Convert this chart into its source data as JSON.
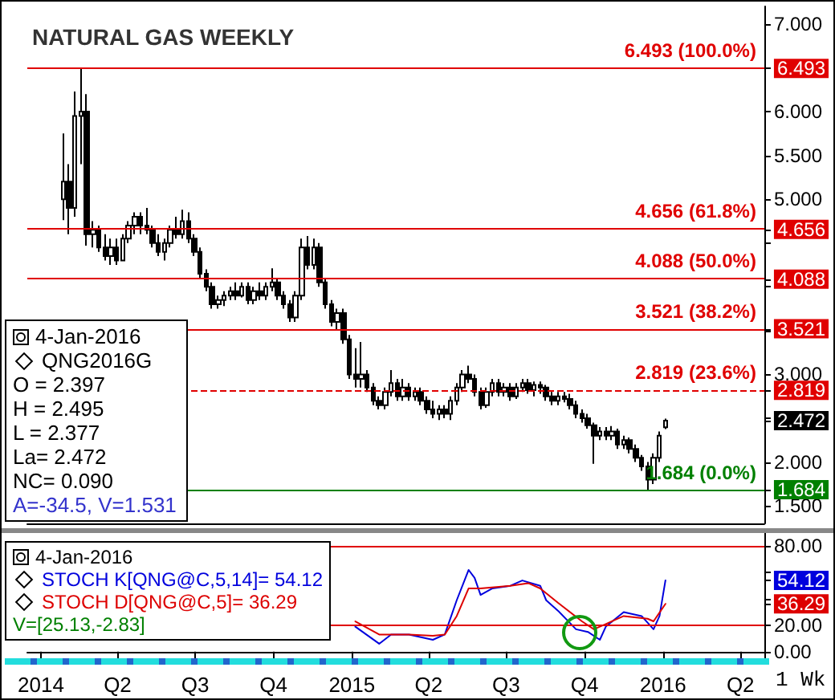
{
  "chart_data": [
    {
      "type": "candlestick",
      "title": "NATURAL GAS WEEKLY",
      "x": [
        "2014-01-27",
        "2014-02-03",
        "2014-02-10",
        "2014-02-17",
        "2014-02-24",
        "2014-03-03",
        "2014-03-10",
        "2014-03-17",
        "2014-03-24",
        "2014-03-31",
        "2014-04-07",
        "2014-04-14",
        "2014-04-21",
        "2014-04-28",
        "2014-05-05",
        "2014-05-12",
        "2014-05-19",
        "2014-05-26",
        "2014-06-02",
        "2014-06-09",
        "2014-06-16",
        "2014-06-23",
        "2014-06-30",
        "2014-07-07",
        "2014-07-14",
        "2014-07-21",
        "2014-07-28",
        "2014-08-04",
        "2014-08-11",
        "2014-08-18",
        "2014-08-25",
        "2014-09-01",
        "2014-09-08",
        "2014-09-15",
        "2014-09-22",
        "2014-09-29",
        "2014-10-06",
        "2014-10-13",
        "2014-10-20",
        "2014-10-27",
        "2014-11-03",
        "2014-11-10",
        "2014-11-17",
        "2014-11-24",
        "2014-12-01",
        "2014-12-08",
        "2014-12-15",
        "2014-12-22",
        "2014-12-29",
        "2015-01-05",
        "2015-01-12",
        "2015-01-19",
        "2015-01-26",
        "2015-02-02",
        "2015-02-09",
        "2015-02-16",
        "2015-02-23",
        "2015-03-02",
        "2015-03-09",
        "2015-03-16",
        "2015-03-23",
        "2015-03-30",
        "2015-04-06",
        "2015-04-13",
        "2015-04-20",
        "2015-04-27",
        "2015-05-04",
        "2015-05-11",
        "2015-05-18",
        "2015-05-25",
        "2015-06-01",
        "2015-06-08",
        "2015-06-15",
        "2015-06-22",
        "2015-06-29",
        "2015-07-06",
        "2015-07-13",
        "2015-07-20",
        "2015-07-27",
        "2015-08-03",
        "2015-08-10",
        "2015-08-17",
        "2015-08-24",
        "2015-08-31",
        "2015-09-07",
        "2015-09-14",
        "2015-09-21",
        "2015-09-28",
        "2015-10-05",
        "2015-10-12",
        "2015-10-19",
        "2015-10-26",
        "2015-11-02",
        "2015-11-09",
        "2015-11-16",
        "2015-11-23",
        "2015-11-30",
        "2015-12-07",
        "2015-12-14",
        "2015-12-21",
        "2015-12-28",
        "2016-01-04"
      ],
      "ohlc": [
        [
          5.0,
          5.75,
          4.76,
          5.2
        ],
        [
          5.2,
          5.4,
          4.6,
          4.9
        ],
        [
          4.9,
          6.23,
          4.8,
          5.95
        ],
        [
          5.95,
          6.493,
          5.4,
          6.0
        ],
        [
          6.0,
          6.2,
          4.47,
          4.6
        ],
        [
          4.6,
          4.75,
          4.45,
          4.65
        ],
        [
          4.65,
          4.7,
          4.4,
          4.45
        ],
        [
          4.45,
          4.6,
          4.3,
          4.35
        ],
        [
          4.35,
          4.55,
          4.25,
          4.45
        ],
        [
          4.45,
          4.55,
          4.25,
          4.3
        ],
        [
          4.3,
          4.6,
          4.3,
          4.55
        ],
        [
          4.55,
          4.75,
          4.5,
          4.7
        ],
        [
          4.7,
          4.85,
          4.6,
          4.8
        ],
        [
          4.8,
          4.85,
          4.6,
          4.7
        ],
        [
          4.7,
          4.9,
          4.6,
          4.65
        ],
        [
          4.65,
          4.7,
          4.45,
          4.5
        ],
        [
          4.5,
          4.6,
          4.35,
          4.4
        ],
        [
          4.4,
          4.55,
          4.3,
          4.5
        ],
        [
          4.5,
          4.7,
          4.45,
          4.65
        ],
        [
          4.65,
          4.8,
          4.55,
          4.6
        ],
        [
          4.6,
          4.88,
          4.55,
          4.75
        ],
        [
          4.75,
          4.85,
          4.5,
          4.55
        ],
        [
          4.55,
          4.6,
          4.35,
          4.4
        ],
        [
          4.4,
          4.45,
          4.1,
          4.15
        ],
        [
          4.15,
          4.2,
          3.95,
          4.0
        ],
        [
          4.0,
          4.05,
          3.75,
          3.8
        ],
        [
          3.8,
          3.9,
          3.75,
          3.85
        ],
        [
          3.85,
          3.95,
          3.78,
          3.9
        ],
        [
          3.9,
          4.0,
          3.85,
          3.95
        ],
        [
          3.95,
          4.05,
          3.85,
          3.9
        ],
        [
          3.9,
          4.05,
          3.88,
          4.0
        ],
        [
          4.0,
          4.05,
          3.8,
          3.85
        ],
        [
          3.85,
          4.0,
          3.8,
          3.95
        ],
        [
          3.95,
          4.05,
          3.85,
          3.9
        ],
        [
          3.9,
          4.05,
          3.85,
          4.0
        ],
        [
          4.0,
          4.21,
          3.95,
          4.05
        ],
        [
          4.05,
          4.1,
          3.85,
          3.9
        ],
        [
          3.9,
          3.95,
          3.75,
          3.8
        ],
        [
          3.8,
          3.85,
          3.6,
          3.65
        ],
        [
          3.65,
          3.95,
          3.6,
          3.9
        ],
        [
          3.9,
          4.55,
          3.85,
          4.45
        ],
        [
          4.45,
          4.58,
          4.2,
          4.25
        ],
        [
          4.25,
          4.55,
          4.2,
          4.45
        ],
        [
          4.45,
          4.5,
          4.0,
          4.05
        ],
        [
          4.05,
          4.1,
          3.75,
          3.8
        ],
        [
          3.8,
          3.85,
          3.55,
          3.6
        ],
        [
          3.6,
          3.75,
          3.5,
          3.7
        ],
        [
          3.7,
          3.75,
          3.35,
          3.4
        ],
        [
          3.4,
          3.45,
          2.95,
          3.0
        ],
        [
          3.0,
          3.3,
          2.85,
          2.95
        ],
        [
          2.95,
          3.37,
          2.85,
          3.0
        ],
        [
          3.0,
          3.05,
          2.8,
          2.85
        ],
        [
          2.85,
          2.9,
          2.65,
          2.7
        ],
        [
          2.7,
          2.75,
          2.6,
          2.65
        ],
        [
          2.65,
          2.85,
          2.6,
          2.8
        ],
        [
          2.8,
          3.05,
          2.75,
          2.9
        ],
        [
          2.9,
          2.95,
          2.7,
          2.75
        ],
        [
          2.75,
          2.95,
          2.7,
          2.85
        ],
        [
          2.85,
          2.9,
          2.7,
          2.75
        ],
        [
          2.75,
          2.85,
          2.7,
          2.8
        ],
        [
          2.8,
          2.85,
          2.65,
          2.7
        ],
        [
          2.7,
          2.75,
          2.55,
          2.6
        ],
        [
          2.6,
          2.7,
          2.5,
          2.55
        ],
        [
          2.55,
          2.65,
          2.48,
          2.6
        ],
        [
          2.6,
          2.65,
          2.5,
          2.55
        ],
        [
          2.55,
          2.75,
          2.48,
          2.7
        ],
        [
          2.7,
          2.9,
          2.65,
          2.85
        ],
        [
          2.85,
          3.05,
          2.8,
          3.0
        ],
        [
          3.0,
          3.1,
          2.9,
          2.95
        ],
        [
          2.95,
          3.0,
          2.75,
          2.8
        ],
        [
          2.8,
          2.85,
          2.6,
          2.65
        ],
        [
          2.65,
          2.85,
          2.62,
          2.8
        ],
        [
          2.8,
          2.95,
          2.75,
          2.9
        ],
        [
          2.9,
          2.95,
          2.75,
          2.8
        ],
        [
          2.8,
          2.9,
          2.75,
          2.85
        ],
        [
          2.85,
          2.9,
          2.7,
          2.75
        ],
        [
          2.75,
          2.9,
          2.72,
          2.85
        ],
        [
          2.85,
          2.95,
          2.8,
          2.9
        ],
        [
          2.9,
          2.95,
          2.78,
          2.82
        ],
        [
          2.82,
          2.92,
          2.75,
          2.88
        ],
        [
          2.88,
          2.92,
          2.78,
          2.85
        ],
        [
          2.85,
          2.88,
          2.7,
          2.75
        ],
        [
          2.75,
          2.8,
          2.65,
          2.7
        ],
        [
          2.7,
          2.8,
          2.65,
          2.75
        ],
        [
          2.75,
          2.8,
          2.68,
          2.72
        ],
        [
          2.72,
          2.78,
          2.6,
          2.65
        ],
        [
          2.65,
          2.7,
          2.5,
          2.55
        ],
        [
          2.55,
          2.6,
          2.45,
          2.5
        ],
        [
          2.5,
          2.55,
          2.38,
          2.42
        ],
        [
          2.42,
          2.45,
          1.98,
          2.3
        ],
        [
          2.3,
          2.4,
          2.25,
          2.35
        ],
        [
          2.35,
          2.4,
          2.25,
          2.3
        ],
        [
          2.3,
          2.41,
          2.25,
          2.35
        ],
        [
          2.35,
          2.38,
          2.15,
          2.2
        ],
        [
          2.2,
          2.3,
          2.15,
          2.25
        ],
        [
          2.25,
          2.28,
          2.1,
          2.15
        ],
        [
          2.15,
          2.2,
          2.0,
          2.05
        ],
        [
          2.05,
          2.08,
          1.9,
          1.95
        ],
        [
          1.95,
          2.0,
          1.684,
          1.8
        ],
        [
          1.8,
          2.1,
          1.75,
          2.05
        ],
        [
          2.05,
          2.35,
          2.0,
          2.3
        ],
        [
          2.397,
          2.495,
          2.377,
          2.472
        ]
      ],
      "color": "#000000",
      "xlim": [
        "2013-12-16",
        "2016-04-29"
      ],
      "ylim": [
        1.3,
        7.2
      ],
      "yticks": [
        {
          "value": 1.5,
          "label": "1.500"
        },
        {
          "value": 1.684,
          "label": "1.684"
        },
        {
          "value": 2,
          "label": "2.000"
        },
        {
          "value": 2.472,
          "label": "2.472"
        },
        {
          "value": 2.5,
          "label": null
        },
        {
          "value": 2.819,
          "label": "2.819"
        },
        {
          "value": 3,
          "label": "3.000"
        },
        {
          "value": 3.5,
          "label": null
        },
        {
          "value": 3.521,
          "label": "3.521"
        },
        {
          "value": 4,
          "label": null
        },
        {
          "value": 4.088,
          "label": "4.088"
        },
        {
          "value": 4.5,
          "label": null
        },
        {
          "value": 4.656,
          "label": "4.656"
        },
        {
          "value": 5,
          "label": "5.000"
        },
        {
          "value": 5.5,
          "label": "5.500"
        },
        {
          "value": 6,
          "label": "6.000"
        },
        {
          "value": 6.493,
          "label": "6.493"
        },
        {
          "value": 6.5,
          "label": null
        },
        {
          "value": 7,
          "label": "7.000"
        }
      ],
      "tick_labels": "y",
      "ref_lines": [
        {
          "axis": "y",
          "value": 6.493,
          "label": "6.493 (100.0%)",
          "color": "#e00000"
        },
        {
          "axis": "y",
          "value": 4.656,
          "label": "4.656 (61.8%)",
          "color": "#e00000"
        },
        {
          "axis": "y",
          "value": 4.088,
          "label": "4.088 (50.0%)",
          "color": "#e00000"
        },
        {
          "axis": "y",
          "value": 3.521,
          "label": "3.521 (38.2%)",
          "color": "#e00000"
        },
        {
          "axis": "y",
          "value": 2.819,
          "label": "2.819 (23.6%)",
          "color": "#e00000",
          "line_style": "dashed"
        },
        {
          "axis": "y",
          "value": 1.684,
          "label": "1.684 (0.0%)",
          "color": "#008000"
        }
      ],
      "annotations": [
        "4-Jan-2016",
        "QNG2016G",
        "O = 2.397",
        "H = 2.495",
        "L = 2.377",
        "La= 2.472",
        "NC= 0.090",
        "A=-34.5, V=1.531"
      ]
    },
    {
      "type": "line",
      "marker": "none",
      "series": [
        {
          "name": "STOCH K[QNG@C,5,14]= 54.12",
          "color": "#0000dd",
          "x": [
            "2015-01-05",
            "2015-02-02",
            "2015-02-16",
            "2015-03-09",
            "2015-04-06",
            "2015-04-20",
            "2015-05-04",
            "2015-05-18",
            "2015-05-25",
            "2015-06-01",
            "2015-06-15",
            "2015-07-06",
            "2015-07-20",
            "2015-08-10",
            "2015-08-17",
            "2015-08-31",
            "2015-09-21",
            "2015-10-05",
            "2015-10-19",
            "2015-10-26",
            "2015-11-16",
            "2015-12-07",
            "2015-12-21",
            "2015-12-28",
            "2016-01-04"
          ],
          "values": [
            19,
            6,
            13,
            13,
            9,
            13,
            39,
            62,
            56,
            43,
            48,
            50,
            54,
            50,
            39,
            31,
            17,
            15,
            9,
            19,
            30,
            27,
            17,
            27,
            54.12
          ]
        },
        {
          "name": "STOCH D[QNG@C,5]= 36.29",
          "color": "#dd0000",
          "x": [
            "2015-01-05",
            "2015-02-02",
            "2015-03-09",
            "2015-04-06",
            "2015-04-20",
            "2015-05-04",
            "2015-05-18",
            "2015-06-01",
            "2015-07-06",
            "2015-07-27",
            "2015-08-10",
            "2015-08-31",
            "2015-09-28",
            "2015-10-12",
            "2015-10-26",
            "2015-11-16",
            "2015-12-14",
            "2015-12-21",
            "2016-01-04"
          ],
          "values": [
            23,
            13,
            13,
            12,
            13,
            27,
            48,
            48,
            50,
            52,
            48,
            37,
            23,
            17,
            21,
            27,
            25,
            23,
            36.29
          ]
        }
      ],
      "xlim": [
        "2013-12-16",
        "2016-04-29"
      ],
      "xticks": [
        {
          "value": "2014-01-01",
          "label": "2014"
        },
        {
          "value": "2014-04-01",
          "label": "Q2"
        },
        {
          "value": "2014-07-01",
          "label": "Q3"
        },
        {
          "value": "2014-10-01",
          "label": "Q4"
        },
        {
          "value": "2015-01-01",
          "label": "2015"
        },
        {
          "value": "2015-04-01",
          "label": "Q2"
        },
        {
          "value": "2015-07-01",
          "label": "Q3"
        },
        {
          "value": "2015-10-01",
          "label": "Q4"
        },
        {
          "value": "2016-01-01",
          "label": "2016"
        },
        {
          "value": "2016-04-01",
          "label": "Q2"
        }
      ],
      "ylim": [
        -5,
        90
      ],
      "yticks": [
        {
          "value": 0,
          "label": "0.00"
        },
        {
          "value": 20,
          "label": "20.00"
        },
        {
          "value": 36.29,
          "label": "36.29"
        },
        {
          "value": 40,
          "label": null
        },
        {
          "value": 54.12,
          "label": "54.12"
        },
        {
          "value": 60,
          "label": null
        },
        {
          "value": 80,
          "label": "80.00"
        }
      ],
      "ref_lines": [
        {
          "axis": "y",
          "value": 80,
          "color": "#e00000"
        },
        {
          "axis": "y",
          "value": 20,
          "color": "#e00000"
        }
      ],
      "annotations": [
        "4-Jan-2016",
        "V=[25.13,-2.83]",
        "1 Wk"
      ]
    }
  ]
}
